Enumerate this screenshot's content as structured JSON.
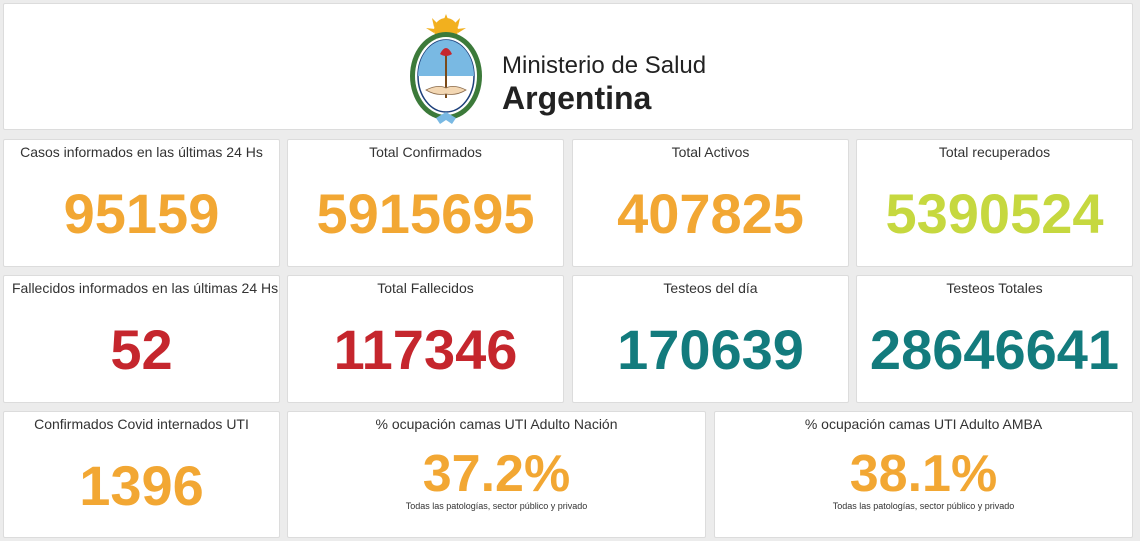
{
  "header": {
    "line1": "Ministerio de Salud",
    "line2": "Argentina",
    "seal_icon": "argentina-coat-of-arms-icon"
  },
  "colors": {
    "orange": "#f2a733",
    "lime": "#c6d83f",
    "red": "#c5262d",
    "teal": "#137b7d"
  },
  "row1": [
    {
      "label": "Casos informados en las últimas 24 Hs",
      "value": "95159"
    },
    {
      "label": "Total Confirmados",
      "value": "5915695"
    },
    {
      "label": "Total Activos",
      "value": "407825"
    },
    {
      "label": "Total recuperados",
      "value": "5390524"
    }
  ],
  "row2": [
    {
      "label": "Fallecidos informados en las últimas 24 Hs",
      "value": "52"
    },
    {
      "label": "Total Fallecidos",
      "value": "117346"
    },
    {
      "label": "Testeos del día",
      "value": "170639"
    },
    {
      "label": "Testeos Totales",
      "value": "28646641"
    }
  ],
  "row3": [
    {
      "label": "Confirmados Covid internados UTI",
      "value": "1396"
    },
    {
      "label": "% ocupación camas UTI Adulto Nación",
      "value": "37.2%",
      "note": "Todas las patologías, sector público y privado"
    },
    {
      "label": "% ocupación camas UTI Adulto AMBA",
      "value": "38.1%",
      "note": "Todas las patologías, sector público y privado"
    }
  ]
}
